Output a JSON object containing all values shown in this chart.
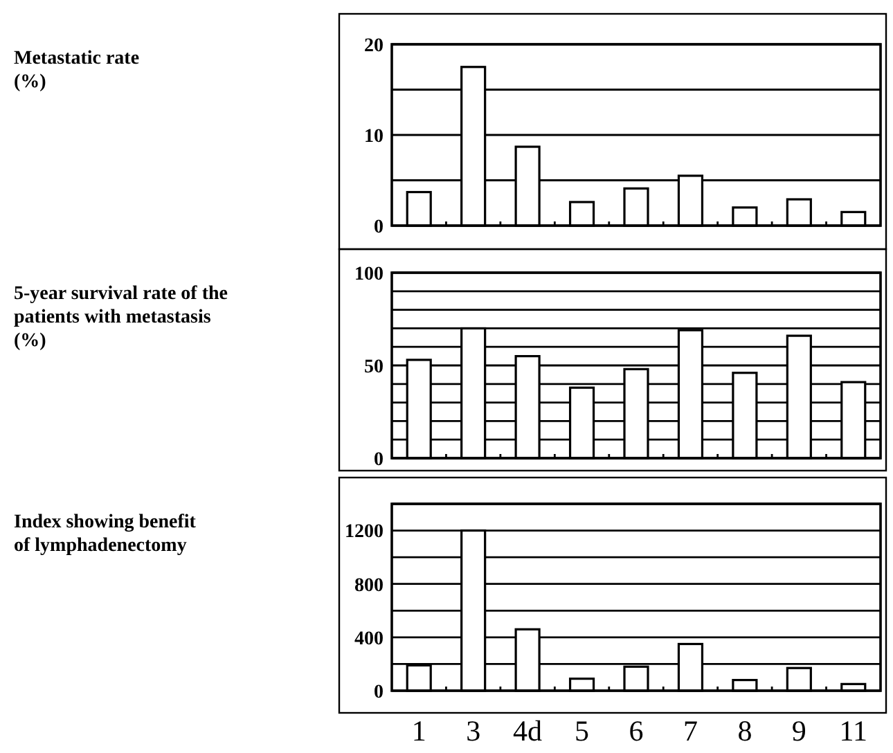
{
  "chart_data": [
    {
      "type": "bar",
      "ylabel": "Metastatic rate\n(%)",
      "categories": [
        null,
        null,
        null,
        null,
        null,
        null,
        null,
        null,
        null
      ],
      "values": [
        3.7,
        17.5,
        8.7,
        2.6,
        4.1,
        5.5,
        2.0,
        2.9,
        1.5
      ],
      "color": "#ffffff",
      "ylim": [
        0,
        20
      ],
      "yticks": [
        0,
        {
          "value": 5,
          "label": null
        },
        10,
        {
          "value": 15,
          "label": null
        },
        20
      ],
      "grid": "y"
    },
    {
      "type": "bar",
      "ylabel": "5-year survival rate of the\npatients with metastasis\n(%)",
      "categories": [
        null,
        null,
        null,
        null,
        null,
        null,
        null,
        null,
        null
      ],
      "values": [
        53,
        70,
        55,
        38,
        48,
        69,
        46,
        66,
        41
      ],
      "color": "#ffffff",
      "ylim": [
        0,
        100
      ],
      "yticks": [
        0,
        {
          "value": 10,
          "label": null
        },
        {
          "value": 20,
          "label": null
        },
        {
          "value": 30,
          "label": null
        },
        {
          "value": 40,
          "label": null
        },
        50,
        {
          "value": 60,
          "label": null
        },
        {
          "value": 70,
          "label": null
        },
        {
          "value": 80,
          "label": null
        },
        {
          "value": 90,
          "label": null
        },
        100
      ],
      "grid": "y"
    },
    {
      "type": "bar",
      "ylabel": "Index showing benefit\nof lymphadenectomy",
      "categories": [
        "1",
        "3",
        "4d",
        "5",
        "6",
        "7",
        "8",
        "9",
        "11"
      ],
      "values": [
        190,
        1200,
        460,
        90,
        180,
        350,
        80,
        170,
        50
      ],
      "color": "#ffffff",
      "ylim": [
        0,
        1400
      ],
      "yticks": [
        0,
        {
          "value": 200,
          "label": null
        },
        400,
        {
          "value": 600,
          "label": null
        },
        800,
        {
          "value": 1000,
          "label": null
        },
        1200,
        {
          "value": 1400,
          "label": null
        }
      ],
      "grid": "y"
    }
  ]
}
